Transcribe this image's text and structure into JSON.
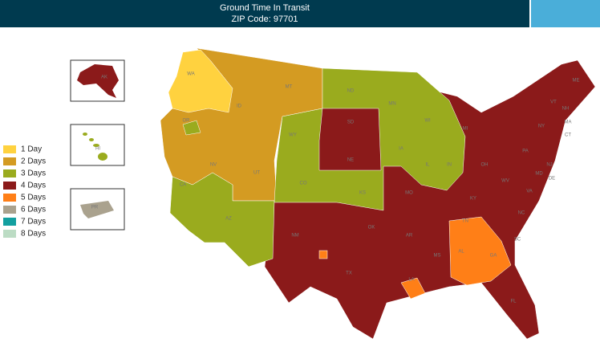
{
  "header": {
    "title": "Ground Time In Transit",
    "subtitle": "ZIP Code: 97701"
  },
  "legend": [
    {
      "label": "1 Day",
      "color": "#ffd23f"
    },
    {
      "label": "2 Days",
      "color": "#d49b22"
    },
    {
      "label": "3 Days",
      "color": "#9aab1e"
    },
    {
      "label": "4 Days",
      "color": "#8b1a1a"
    },
    {
      "label": "5 Days",
      "color": "#ff7f17"
    },
    {
      "label": "6 Days",
      "color": "#aaa28e"
    },
    {
      "label": "7 Days",
      "color": "#13a0a0"
    },
    {
      "label": "8 Days",
      "color": "#bcdcc4"
    }
  ],
  "state_labels": [
    "WA",
    "OR",
    "CA",
    "NV",
    "ID",
    "MT",
    "WY",
    "UT",
    "CO",
    "AZ",
    "NM",
    "ND",
    "SD",
    "NE",
    "KS",
    "OK",
    "TX",
    "MN",
    "IA",
    "MO",
    "AR",
    "LA",
    "WI",
    "IL",
    "MI",
    "IN",
    "OH",
    "KY",
    "TN",
    "MS",
    "AL",
    "GA",
    "FL",
    "SC",
    "NC",
    "VA",
    "WV",
    "PA",
    "NY",
    "ME",
    "VT",
    "NH",
    "MA",
    "CT",
    "NJ",
    "MD",
    "DE",
    "AK",
    "HI",
    "PR"
  ]
}
